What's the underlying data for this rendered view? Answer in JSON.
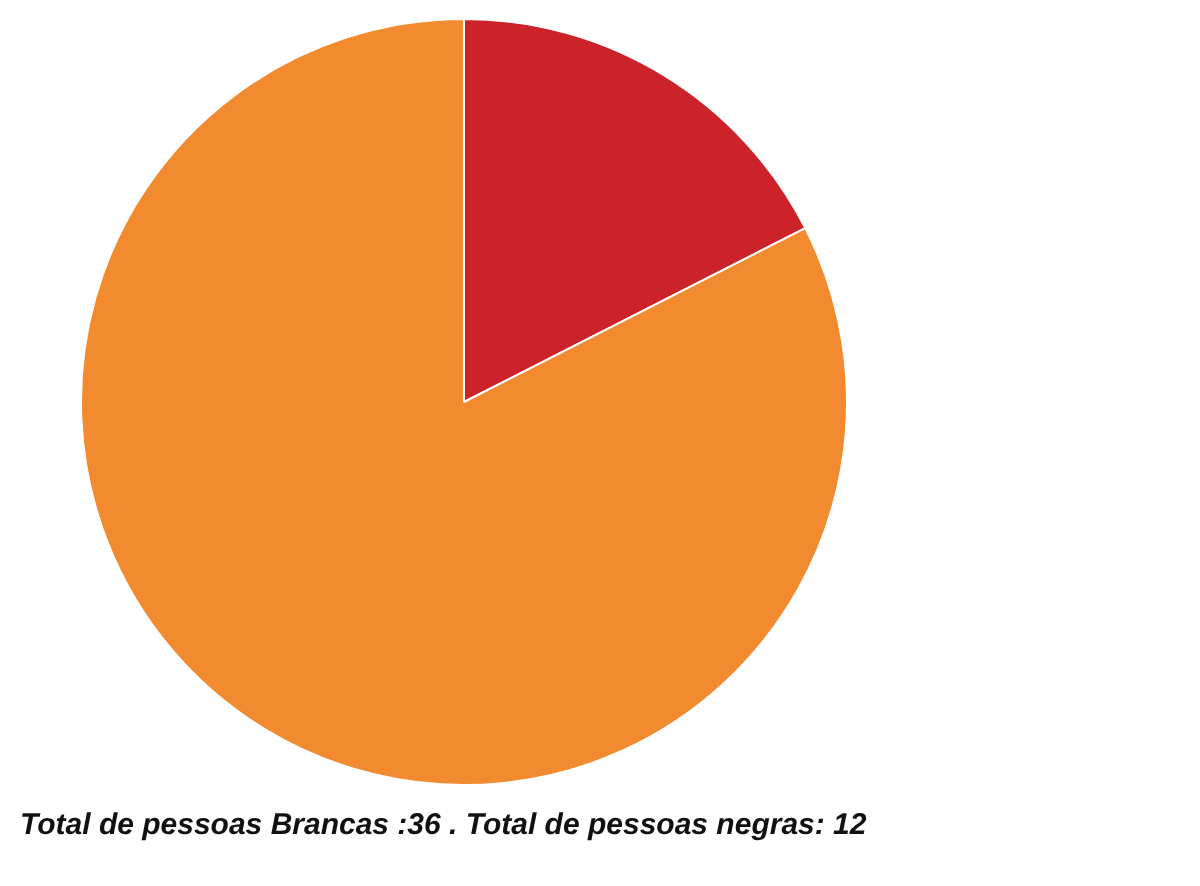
{
  "chart_data": {
    "type": "pie",
    "categories": [
      null,
      null
    ],
    "values": [
      17.5,
      82.5
    ],
    "colors": [
      "#cc2229",
      "#f28a30"
    ],
    "legend": false,
    "annotations": [
      "Total de pessoas Brancas :36 . Total de pessoas negras: 12"
    ]
  }
}
